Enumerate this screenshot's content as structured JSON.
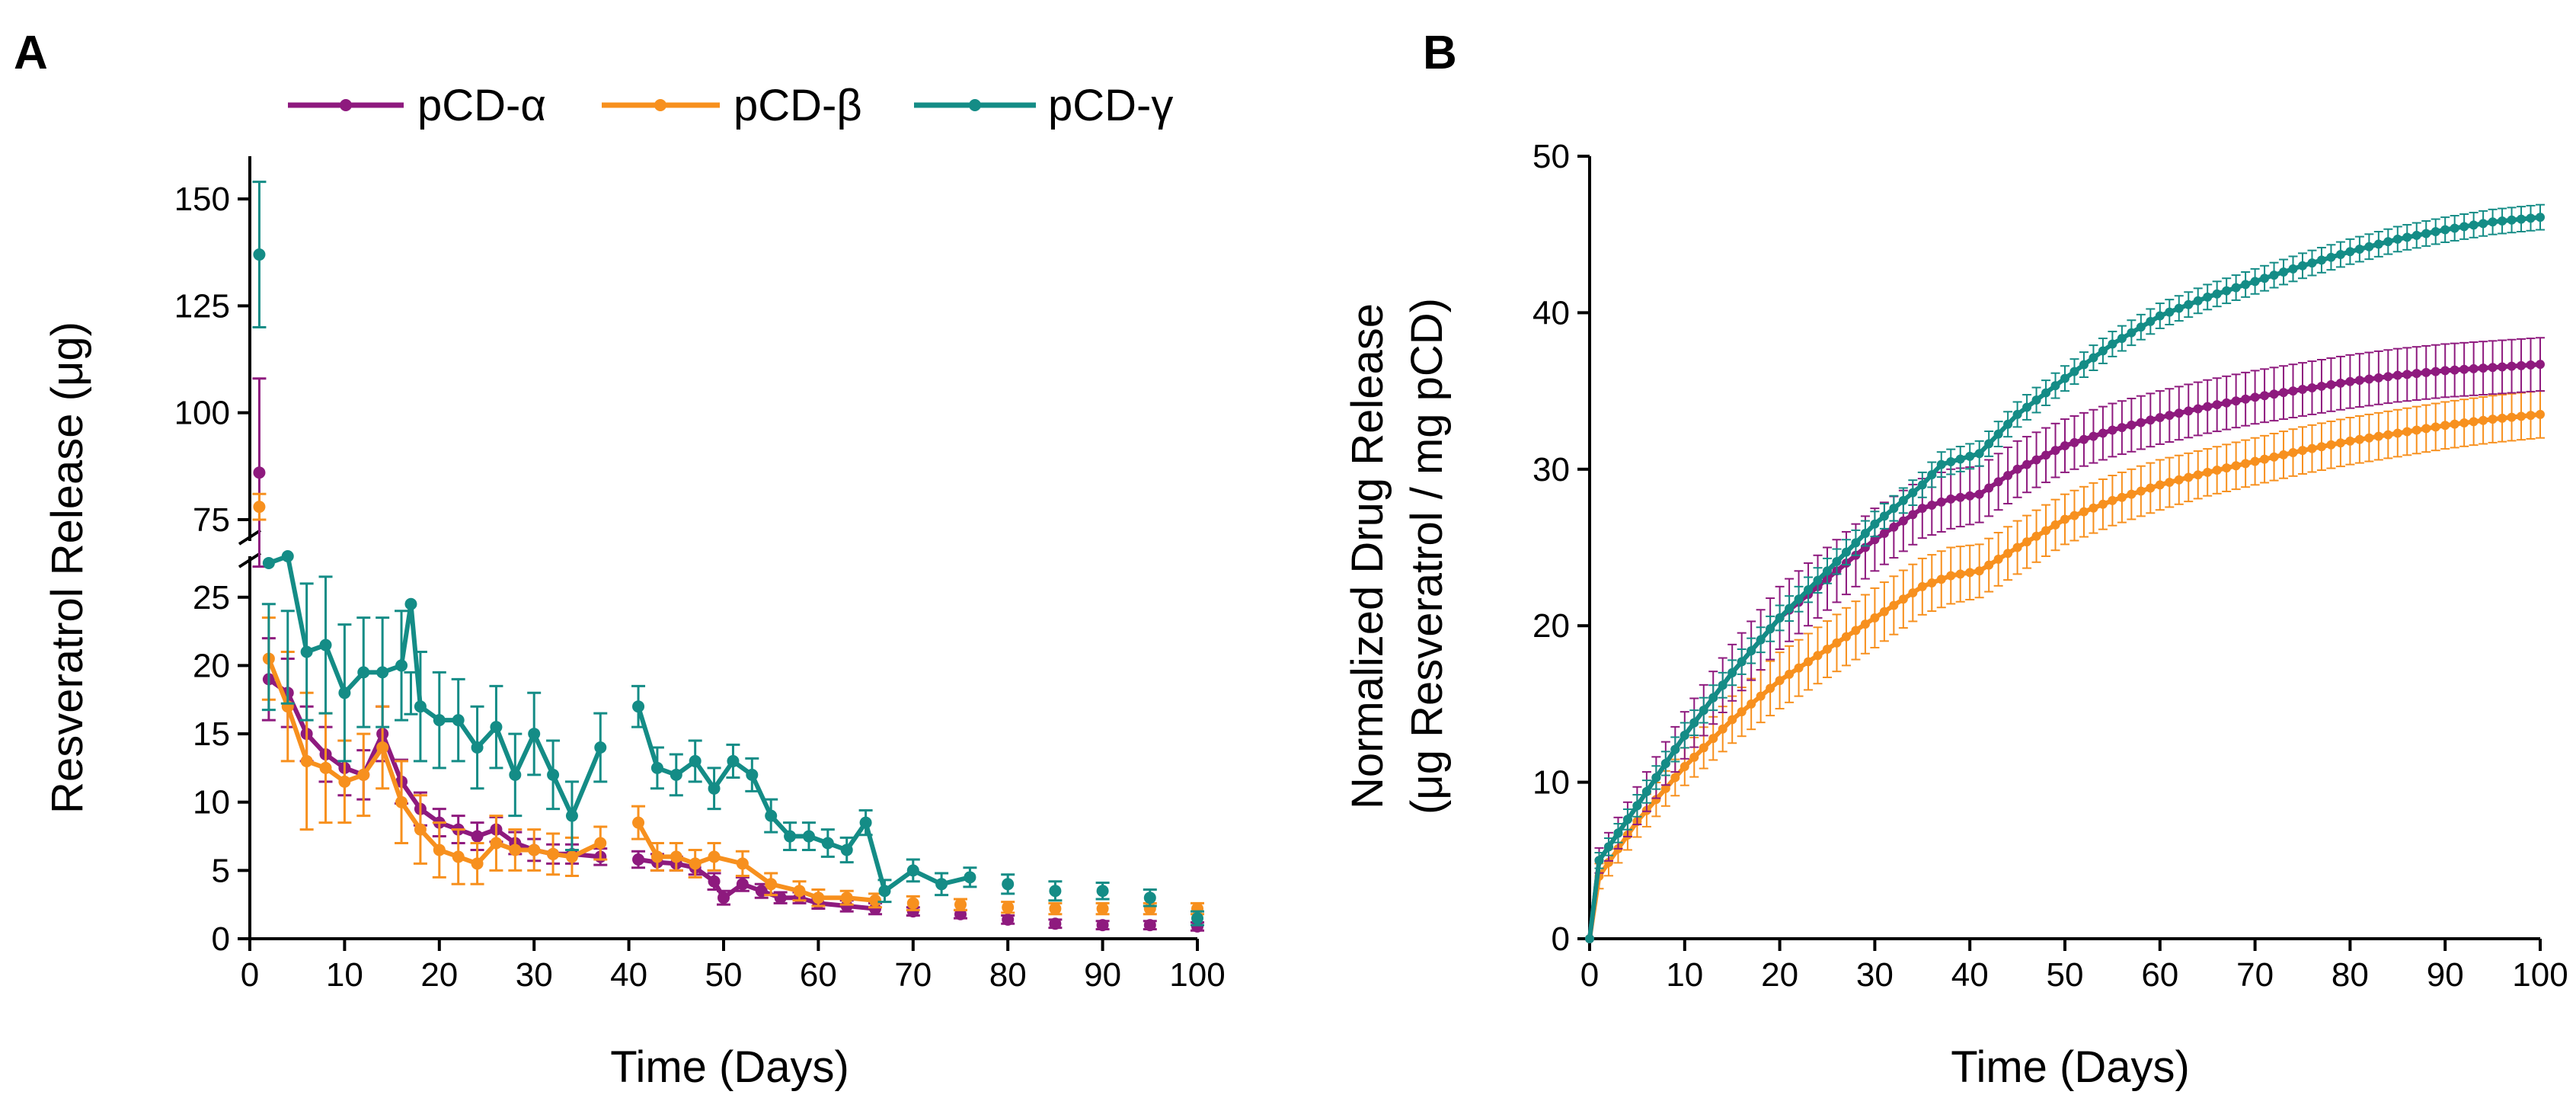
{
  "colors": {
    "alpha": "#8E1A7E",
    "beta": "#F7901E",
    "gamma": "#148C86"
  },
  "legend": [
    {
      "key": "alpha",
      "label": "pCD-α"
    },
    {
      "key": "beta",
      "label": "pCD-β"
    },
    {
      "key": "gamma",
      "label": "pCD-γ"
    }
  ],
  "chart_data": [
    {
      "panel": "A",
      "type": "line",
      "xlabel": "Time (Days)",
      "ylabel": "Resveratrol Release (μg)",
      "xlim": [
        0,
        100
      ],
      "xticks": [
        0,
        10,
        20,
        30,
        40,
        50,
        60,
        70,
        80,
        90,
        100
      ],
      "ylim_lower": [
        0,
        28
      ],
      "yticks_lower": [
        0,
        5,
        10,
        15,
        20,
        25
      ],
      "ylim_upper": [
        70,
        160
      ],
      "yticks_upper": [
        75,
        100,
        125,
        150
      ],
      "axis_break": true,
      "series": [
        {
          "key": "alpha",
          "name": "pCD-α",
          "x": [
            1,
            2,
            4,
            6,
            8,
            10,
            12,
            14,
            16,
            18,
            20,
            22,
            24,
            26,
            28,
            30,
            32,
            34,
            37,
            41,
            43,
            45,
            47,
            49,
            50,
            52,
            54,
            56,
            58,
            60,
            63,
            66,
            70,
            75,
            80,
            85,
            90,
            95,
            100
          ],
          "y": [
            86,
            19,
            18,
            15,
            13.5,
            12.5,
            12,
            15,
            11.5,
            9.5,
            8.5,
            8,
            7.5,
            8,
            7,
            6.5,
            6.2,
            6.2,
            6,
            5.8,
            5.6,
            5.5,
            5.2,
            4.2,
            3,
            4,
            3.5,
            3,
            3,
            2.6,
            2.4,
            2.2,
            2,
            1.8,
            1.4,
            1.1,
            1,
            1,
            0.9
          ],
          "err": [
            22,
            3,
            2.5,
            2,
            2,
            2,
            1.8,
            2,
            1.6,
            1.2,
            1,
            1,
            1,
            0.9,
            0.8,
            0.8,
            0.7,
            0.7,
            0.6,
            0.6,
            0.6,
            0.5,
            0.5,
            0.6,
            0.5,
            0.5,
            0.5,
            0.4,
            0.4,
            0.4,
            0.4,
            0.4,
            0.3,
            0.3,
            0.3,
            0.3,
            0.3,
            0.3,
            0.3
          ]
        },
        {
          "key": "beta",
          "name": "pCD-β",
          "x": [
            1,
            2,
            4,
            6,
            8,
            10,
            12,
            14,
            16,
            18,
            20,
            22,
            24,
            26,
            28,
            30,
            32,
            34,
            37,
            41,
            43,
            45,
            47,
            49,
            52,
            55,
            58,
            60,
            63,
            66,
            70,
            75,
            80,
            85,
            90,
            95,
            100
          ],
          "y": [
            78,
            20.5,
            17,
            13,
            12.5,
            11.5,
            12,
            14,
            10,
            8,
            6.5,
            6,
            5.5,
            7,
            6.5,
            6.5,
            6.2,
            6,
            7,
            8.5,
            6,
            6,
            5.5,
            6,
            5.5,
            4,
            3.5,
            3,
            3,
            2.8,
            2.6,
            2.5,
            2.3,
            2.2,
            2.2,
            2.2,
            2.2
          ],
          "err": [
            3,
            3,
            4,
            5,
            4,
            3,
            3,
            3,
            3,
            2.5,
            2,
            2,
            1.5,
            2,
            1.5,
            1.5,
            1.5,
            1.4,
            1.2,
            1.2,
            1,
            1,
            1,
            1,
            0.9,
            0.8,
            0.7,
            0.6,
            0.5,
            0.5,
            0.5,
            0.4,
            0.4,
            0.4,
            0.4,
            0.4,
            0.4
          ]
        },
        {
          "key": "gamma",
          "name": "pCD-γ",
          "x": [
            1,
            2,
            4,
            6,
            8,
            10,
            12,
            14,
            16,
            17,
            18,
            20,
            22,
            24,
            26,
            28,
            30,
            32,
            34,
            37,
            41,
            43,
            45,
            47,
            49,
            51,
            53,
            55,
            57,
            59,
            61,
            63,
            65,
            67,
            70,
            73,
            76,
            80,
            85,
            90,
            95,
            100
          ],
          "y": [
            137,
            27.5,
            28,
            21,
            21.5,
            18,
            19.5,
            19.5,
            20,
            24.5,
            17,
            16,
            16,
            14,
            15.5,
            12,
            15,
            12,
            9,
            14,
            17,
            12.5,
            12,
            13,
            11,
            13,
            12,
            9,
            7.5,
            7.5,
            7,
            6.5,
            8.5,
            3.5,
            5,
            4,
            4.5,
            4,
            3.5,
            3.5,
            3,
            1.5
          ],
          "err": [
            17,
            3,
            4,
            5,
            5,
            5,
            4,
            4,
            4,
            5,
            4,
            3.5,
            3,
            3,
            3,
            3,
            3,
            2.5,
            2.5,
            2.5,
            1.5,
            1.5,
            1.5,
            1.5,
            1.5,
            1.2,
            1.2,
            1.2,
            1,
            1,
            1,
            0.9,
            0.9,
            0.8,
            0.8,
            0.8,
            0.7,
            0.7,
            0.7,
            0.6,
            0.6,
            0.5
          ]
        }
      ]
    },
    {
      "panel": "B",
      "type": "line",
      "xlabel": "Time (Days)",
      "ylabel_line1": "Normalized Drug Release",
      "ylabel_line2": "(μg Resveratrol / mg pCD)",
      "xlim": [
        0,
        100
      ],
      "xticks": [
        0,
        10,
        20,
        30,
        40,
        50,
        60,
        70,
        80,
        90,
        100
      ],
      "ylim": [
        0,
        50
      ],
      "yticks": [
        0,
        10,
        20,
        30,
        40,
        50
      ],
      "series": [
        {
          "key": "beta",
          "name": "pCD-β",
          "x": [
            0,
            1,
            5,
            10,
            15,
            20,
            25,
            30,
            35,
            38,
            41,
            45,
            50,
            55,
            60,
            65,
            70,
            75,
            80,
            85,
            90,
            95,
            100
          ],
          "y": [
            0,
            4,
            7.5,
            11,
            14,
            16.5,
            18.5,
            20.5,
            22.5,
            23.2,
            23.5,
            25,
            26.8,
            28,
            29,
            29.8,
            30.5,
            31.2,
            31.8,
            32.3,
            32.8,
            33.2,
            33.5
          ],
          "err": [
            0.3,
            0.8,
            1,
            1.2,
            1.5,
            1.8,
            1.8,
            1.9,
            1.8,
            1.8,
            1.7,
            1.7,
            1.6,
            1.6,
            1.6,
            1.5,
            1.5,
            1.5,
            1.5,
            1.5,
            1.5,
            1.5,
            1.5
          ]
        },
        {
          "key": "alpha",
          "name": "pCD-α",
          "x": [
            0,
            1,
            5,
            10,
            15,
            20,
            25,
            30,
            35,
            38,
            41,
            45,
            50,
            55,
            60,
            65,
            70,
            75,
            80,
            85,
            90,
            95,
            100
          ],
          "y": [
            0,
            5,
            8.5,
            13,
            17,
            20.5,
            23,
            25.5,
            27.5,
            28.1,
            28.4,
            30,
            31.5,
            32.5,
            33.3,
            34,
            34.6,
            35.1,
            35.6,
            36,
            36.3,
            36.5,
            36.7
          ],
          "err": [
            0.3,
            0.8,
            1.2,
            1.5,
            1.8,
            2,
            2,
            2,
            1.9,
            1.9,
            1.8,
            1.8,
            1.7,
            1.7,
            1.7,
            1.7,
            1.7,
            1.7,
            1.7,
            1.7,
            1.7,
            1.7,
            1.7
          ]
        },
        {
          "key": "gamma",
          "name": "pCD-γ",
          "x": [
            0,
            1,
            5,
            10,
            15,
            20,
            25,
            30,
            35,
            37,
            41,
            45,
            50,
            55,
            60,
            65,
            70,
            75,
            80,
            85,
            90,
            95,
            100
          ],
          "y": [
            0,
            5,
            8.5,
            13,
            17,
            20.5,
            23.5,
            26.5,
            29,
            30.3,
            31,
            33.5,
            35.8,
            38,
            39.8,
            41,
            42,
            43,
            43.9,
            44.7,
            45.3,
            45.8,
            46.1
          ],
          "err": [
            0.3,
            0.5,
            0.7,
            0.8,
            0.8,
            0.8,
            0.8,
            0.8,
            0.8,
            0.8,
            0.8,
            0.8,
            0.8,
            0.8,
            0.8,
            0.8,
            0.8,
            0.8,
            0.8,
            0.8,
            0.8,
            0.8,
            0.8
          ]
        }
      ]
    }
  ]
}
